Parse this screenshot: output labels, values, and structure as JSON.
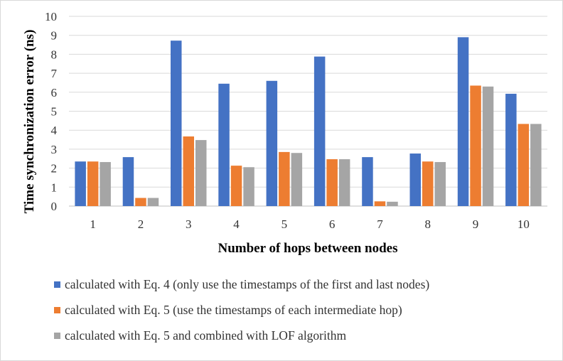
{
  "chart_data": {
    "type": "bar",
    "title": "",
    "xlabel": "Number of hops between nodes",
    "ylabel": "Time synchronization error (ns)",
    "categories": [
      "1",
      "2",
      "3",
      "4",
      "5",
      "6",
      "7",
      "8",
      "9",
      "10"
    ],
    "ylim": [
      0,
      10
    ],
    "yticks": [
      "0",
      "1",
      "2",
      "3",
      "4",
      "5",
      "6",
      "7",
      "8",
      "9",
      "10"
    ],
    "grid": true,
    "legend_position": "bottom",
    "series": [
      {
        "name": "calculated with Eq. 4 (only use the timestamps of the first and last nodes)",
        "color": "#4472c4",
        "values": [
          2.35,
          2.58,
          8.72,
          6.45,
          6.6,
          7.88,
          2.58,
          2.77,
          8.9,
          5.92
        ]
      },
      {
        "name": "calculated with Eq. 5 (use the timestamps of each intermediate hop)",
        "color": "#ed7d31",
        "values": [
          2.35,
          0.43,
          3.67,
          2.13,
          2.85,
          2.47,
          0.25,
          2.35,
          6.35,
          4.33
        ]
      },
      {
        "name": "calculated with Eq. 5 and combined with LOF algorithm",
        "color": "#a5a5a5",
        "values": [
          2.32,
          0.43,
          3.48,
          2.05,
          2.8,
          2.47,
          0.23,
          2.32,
          6.3,
          4.33
        ]
      }
    ]
  }
}
